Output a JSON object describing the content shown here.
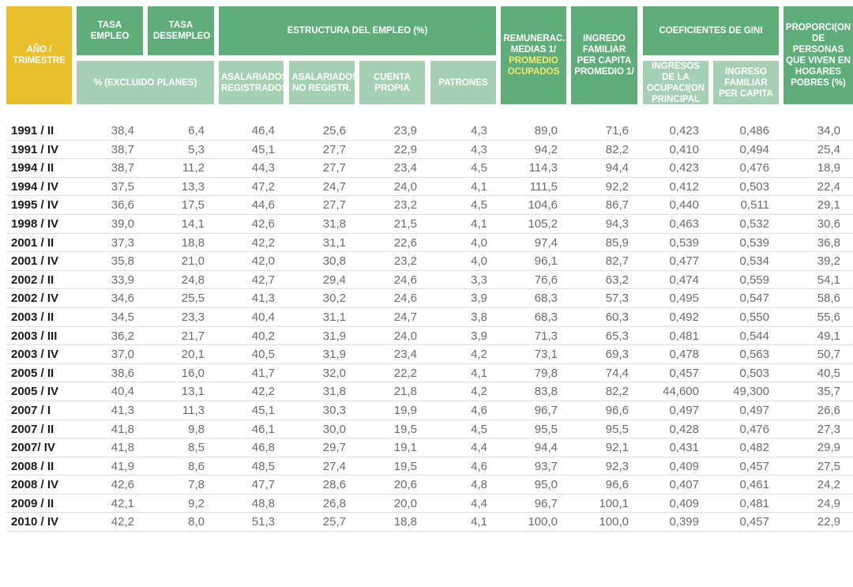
{
  "headers": {
    "periodo": "AÑO / TRIMESTRE",
    "tasa_empleo": "TASA EMPLEO",
    "tasa_desempleo": "TASA DESEMPLEO",
    "excluido_planes": "% (EXCLUIDO PLANES)",
    "estructura_empleo": "ESTRUCTURA DEL EMPLEO (%)",
    "asalariados_registrados": "ASALARIADOS REGISTRADOS",
    "asalariados_no_registr": "ASALARIADOS NO REGISTR.",
    "cuenta_propia": "CUENTA PROPIA",
    "patrones": "PATRONES",
    "remunerac_line1": "REMUNERAC. MEDIAS 1/",
    "remunerac_line2": "PROMEDIO OCUPADOS",
    "ingreso_familiar": "INGREDO FAMILIAR PER CAPITA PROMEDIO 1/",
    "coeficientes_gini": "COEFICIENTES DE GINI",
    "gini_ocupacion": "INGRESOS DE LA OCUPACI(ON PRINCIPAL",
    "gini_familiar": "INGRESO FAMILIAR PER CAPITA",
    "proporcion": "PROPORCI(ON DE PERSONAS QUE VIVEN EN HOGARES POBRES (%)"
  },
  "rows": [
    [
      "1991 / II",
      "38,4",
      "6,4",
      "46,4",
      "25,6",
      "23,9",
      "4,3",
      "89,0",
      "71,6",
      "0,423",
      "0,486",
      "34,0"
    ],
    [
      "1991 / IV",
      "38,7",
      "5,3",
      "45,1",
      "27,7",
      "22,9",
      "4,3",
      "94,2",
      "82,2",
      "0,410",
      "0,494",
      "25,4"
    ],
    [
      "1994 / II",
      "38,7",
      "11,2",
      "44,3",
      "27,7",
      "23,4",
      "4,5",
      "114,3",
      "94,4",
      "0,423",
      "0,476",
      "18,9"
    ],
    [
      "1994 / IV",
      "37,5",
      "13,3",
      "47,2",
      "24,7",
      "24,0",
      "4,1",
      "111,5",
      "92,2",
      "0,412",
      "0,503",
      "22,4"
    ],
    [
      "1995 / IV",
      "36,6",
      "17,5",
      "44,6",
      "27,7",
      "23,2",
      "4,5",
      "104,6",
      "86,7",
      "0,440",
      "0,511",
      "29,1"
    ],
    [
      "1998 / IV",
      "39,0",
      "14,1",
      "42,6",
      "31,8",
      "21,5",
      "4,1",
      "105,2",
      "94,3",
      "0,463",
      "0,532",
      "30,6"
    ],
    [
      "2001 / II",
      "37,3",
      "18,8",
      "42,2",
      "31,1",
      "22,6",
      "4,0",
      "97,4",
      "85,9",
      "0,539",
      "0,539",
      "36,8"
    ],
    [
      "2001 / IV",
      "35,8",
      "21,0",
      "42,0",
      "30,8",
      "23,2",
      "4,0",
      "96,1",
      "82,7",
      "0,477",
      "0,534",
      "39,2"
    ],
    [
      "2002 / II",
      "33,9",
      "24,8",
      "42,7",
      "29,4",
      "24,6",
      "3,3",
      "76,6",
      "63,2",
      "0,474",
      "0,559",
      "54,1"
    ],
    [
      "2002 / IV",
      "34,6",
      "25,5",
      "41,3",
      "30,2",
      "24,6",
      "3,9",
      "68,3",
      "57,3",
      "0,495",
      "0,547",
      "58,6"
    ],
    [
      "2003 / II",
      "34,5",
      "23,3",
      "40,4",
      "31,1",
      "24,7",
      "3,8",
      "68,3",
      "60,3",
      "0,492",
      "0,550",
      "55,6"
    ],
    [
      "2003 / III",
      "36,2",
      "21,7",
      "40,2",
      "31,9",
      "24,0",
      "3,9",
      "71,3",
      "65,3",
      "0,481",
      "0,544",
      "49,1"
    ],
    [
      "2003 / IV",
      "37,0",
      "20,1",
      "40,5",
      "31,9",
      "23,4",
      "4,2",
      "73,1",
      "69,3",
      "0,478",
      "0,563",
      "50,7"
    ],
    [
      "2005 / II",
      "38,6",
      "16,0",
      "41,7",
      "32,0",
      "22,2",
      "4,1",
      "79,8",
      "74,4",
      "0,457",
      "0,503",
      "40,5"
    ],
    [
      "2005 / IV",
      "40,4",
      "13,1",
      "42,2",
      "31,8",
      "21,8",
      "4,2",
      "83,8",
      "82,2",
      "44,600",
      "49,300",
      "35,7"
    ],
    [
      "2007 / I",
      "41,3",
      "11,3",
      "45,1",
      "30,3",
      "19,9",
      "4,6",
      "96,7",
      "96,6",
      "0,497",
      "0,497",
      "26,6"
    ],
    [
      "2007 / II",
      "41,8",
      "9,8",
      "46,1",
      "30,0",
      "19,5",
      "4,5",
      "95,5",
      "95,5",
      "0,428",
      "0,476",
      "27,3"
    ],
    [
      "2007/ IV",
      "41,8",
      "8,5",
      "46,8",
      "29,7",
      "19,1",
      "4,4",
      "94,4",
      "92,1",
      "0,431",
      "0,482",
      "29,9"
    ],
    [
      "2008 / II",
      "41,9",
      "8,6",
      "48,5",
      "27,4",
      "19,5",
      "4,6",
      "93,7",
      "92,3",
      "0,409",
      "0,457",
      "27,5"
    ],
    [
      "2008 / IV",
      "42,6",
      "7,8",
      "47,7",
      "28,6",
      "20,6",
      "4,8",
      "95,0",
      "96,6",
      "0,407",
      "0,461",
      "24,2"
    ],
    [
      "2009 / II",
      "42,1",
      "9,2",
      "48,8",
      "26,8",
      "20,0",
      "4,4",
      "96,7",
      "100,1",
      "0,409",
      "0,481",
      "24,9"
    ],
    [
      "2010 / IV",
      "42,2",
      "8,0",
      "51,3",
      "25,7",
      "18,8",
      "4,1",
      "100,0",
      "100,0",
      "0,399",
      "0,457",
      "22,9"
    ]
  ],
  "colors": {
    "header_dark": "#5fae7a",
    "header_light": "#a6d0b3",
    "header_year": "#e9bf2c",
    "highlight_text": "#f3ea6a",
    "period_text": "#1c1c1c",
    "value_text": "#6b6b6b"
  }
}
